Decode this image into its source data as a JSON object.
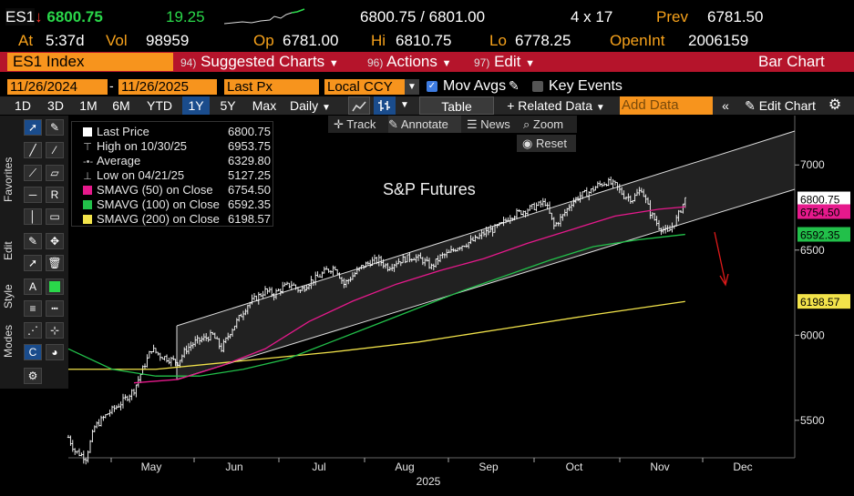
{
  "quote": {
    "ticker": "ES1",
    "arrow": "↓",
    "last": "6800.75",
    "change": "19.25",
    "bid_ask": "6800.75 / 6801.00",
    "size": "4 x 17",
    "prev_label": "Prev",
    "prev": "6781.50",
    "at_label": "At",
    "at_time": "5:37d",
    "vol_label": "Vol",
    "vol": "98959",
    "op_label": "Op",
    "op": "6781.00",
    "hi_label": "Hi",
    "hi": "6810.75",
    "lo_label": "Lo",
    "lo": "6778.25",
    "oi_label": "OpenInt",
    "oi": "2006159"
  },
  "titlebar": {
    "security": "ES1 Index",
    "menu1_num": "94)",
    "menu1": "Suggested Charts",
    "menu2_num": "96)",
    "menu2": "Actions",
    "menu3_num": "97)",
    "menu3": "Edit",
    "right": "Bar Chart"
  },
  "controls": {
    "start_date": "11/26/2024",
    "end_date": "11/26/2025",
    "field": "Last Px",
    "currency": "Local CCY",
    "mov_avgs": "Mov Avgs",
    "key_events": "Key Events",
    "periods": [
      "1D",
      "3D",
      "1M",
      "6M",
      "YTD",
      "1Y",
      "5Y",
      "Max"
    ],
    "selected_period": "1Y",
    "freq": "Daily",
    "table": "Table",
    "related": "+ Related Data",
    "add_data_placeholder": "Add Data",
    "edit_chart": "Edit Chart"
  },
  "left_tabs": [
    "Favorites",
    "Edit",
    "Style",
    "Modes"
  ],
  "track_bar": {
    "track": "Track",
    "annotate": "Annotate",
    "news": "News",
    "zoom": "Zoom",
    "reset": "Reset"
  },
  "legend": [
    {
      "label": "Last Price",
      "value": "6800.75",
      "color": "#ffffff",
      "marker": "square"
    },
    {
      "label": "High on 10/30/25",
      "value": "6953.75",
      "color": "#ffffff",
      "marker": "high"
    },
    {
      "label": "Average",
      "value": "6329.80",
      "color": "#ffffff",
      "marker": "avg"
    },
    {
      "label": "Low on 04/21/25",
      "value": "5127.25",
      "color": "#ffffff",
      "marker": "low"
    },
    {
      "label": "SMAVG (50)  on Close",
      "value": "6754.50",
      "color": "#e6198c",
      "marker": "square"
    },
    {
      "label": "SMAVG (100)  on Close",
      "value": "6592.35",
      "color": "#22c04a",
      "marker": "square"
    },
    {
      "label": "SMAVG (200)  on Close",
      "value": "6198.57",
      "color": "#f2e34a",
      "marker": "square"
    }
  ],
  "chart_data": {
    "type": "bar",
    "title": "S&P Futures",
    "xlabel": "2025",
    "x_ticks": [
      "May",
      "Jun",
      "Jul",
      "Aug",
      "Sep",
      "Oct",
      "Nov",
      "Dec"
    ],
    "y_ticks": [
      5500,
      6000,
      6500,
      7000
    ],
    "ylim": [
      5280,
      7290
    ],
    "price_tags": [
      {
        "value": "6800.75",
        "color": "#ffffff",
        "text_color": "#000000"
      },
      {
        "value": "6754.50",
        "color": "#e6198c",
        "text_color": "#000000"
      },
      {
        "value": "6592.35",
        "color": "#22c04a",
        "text_color": "#000000"
      },
      {
        "value": "6198.57",
        "color": "#f2e34a",
        "text_color": "#000000"
      }
    ],
    "ohlc_anchor_points": [
      [
        0,
        5400
      ],
      [
        3,
        5320
      ],
      [
        8,
        5280
      ],
      [
        12,
        5460
      ],
      [
        18,
        5540
      ],
      [
        24,
        5600
      ],
      [
        30,
        5680
      ],
      [
        34,
        5800
      ],
      [
        38,
        5920
      ],
      [
        42,
        5880
      ],
      [
        46,
        5860
      ],
      [
        50,
        5840
      ],
      [
        54,
        5920
      ],
      [
        58,
        5960
      ],
      [
        62,
        5980
      ],
      [
        66,
        6000
      ],
      [
        70,
        5920
      ],
      [
        74,
        6020
      ],
      [
        78,
        6100
      ],
      [
        82,
        6180
      ],
      [
        86,
        6220
      ],
      [
        90,
        6260
      ],
      [
        94,
        6240
      ],
      [
        98,
        6280
      ],
      [
        102,
        6300
      ],
      [
        106,
        6260
      ],
      [
        110,
        6310
      ],
      [
        114,
        6340
      ],
      [
        118,
        6380
      ],
      [
        122,
        6400
      ],
      [
        126,
        6300
      ],
      [
        130,
        6350
      ],
      [
        134,
        6400
      ],
      [
        138,
        6430
      ],
      [
        142,
        6440
      ],
      [
        146,
        6400
      ],
      [
        150,
        6430
      ],
      [
        154,
        6450
      ],
      [
        158,
        6460
      ],
      [
        162,
        6440
      ],
      [
        166,
        6400
      ],
      [
        170,
        6460
      ],
      [
        174,
        6480
      ],
      [
        178,
        6520
      ],
      [
        182,
        6540
      ],
      [
        186,
        6560
      ],
      [
        190,
        6600
      ],
      [
        194,
        6620
      ],
      [
        198,
        6650
      ],
      [
        202,
        6700
      ],
      [
        206,
        6720
      ],
      [
        210,
        6740
      ],
      [
        214,
        6760
      ],
      [
        218,
        6780
      ],
      [
        222,
        6640
      ],
      [
        226,
        6700
      ],
      [
        230,
        6780
      ],
      [
        234,
        6820
      ],
      [
        238,
        6840
      ],
      [
        242,
        6880
      ],
      [
        246,
        6900
      ],
      [
        250,
        6880
      ],
      [
        254,
        6820
      ],
      [
        258,
        6800
      ],
      [
        262,
        6860
      ],
      [
        266,
        6720
      ],
      [
        270,
        6640
      ],
      [
        274,
        6600
      ],
      [
        278,
        6680
      ],
      [
        282,
        6800
      ]
    ],
    "sma50": [
      [
        30,
        5720
      ],
      [
        50,
        5740
      ],
      [
        70,
        5820
      ],
      [
        90,
        5920
      ],
      [
        110,
        6080
      ],
      [
        130,
        6200
      ],
      [
        150,
        6300
      ],
      [
        170,
        6380
      ],
      [
        190,
        6450
      ],
      [
        210,
        6540
      ],
      [
        230,
        6620
      ],
      [
        250,
        6700
      ],
      [
        270,
        6740
      ],
      [
        282,
        6754
      ]
    ],
    "sma100": [
      [
        0,
        5920
      ],
      [
        20,
        5800
      ],
      [
        40,
        5760
      ],
      [
        60,
        5760
      ],
      [
        80,
        5800
      ],
      [
        100,
        5860
      ],
      [
        120,
        5960
      ],
      [
        140,
        6060
      ],
      [
        160,
        6160
      ],
      [
        180,
        6260
      ],
      [
        200,
        6350
      ],
      [
        220,
        6440
      ],
      [
        240,
        6520
      ],
      [
        260,
        6560
      ],
      [
        282,
        6592
      ]
    ],
    "sma200": [
      [
        0,
        5800
      ],
      [
        40,
        5800
      ],
      [
        80,
        5850
      ],
      [
        120,
        5900
      ],
      [
        160,
        5960
      ],
      [
        200,
        6040
      ],
      [
        240,
        6120
      ],
      [
        282,
        6198
      ]
    ],
    "channel_upper": [
      [
        38,
        6120
      ],
      [
        400,
        7370
      ]
    ],
    "channel_lower": [
      [
        38,
        5760
      ],
      [
        400,
        7000
      ]
    ],
    "annotation_arrow": "down-right"
  }
}
